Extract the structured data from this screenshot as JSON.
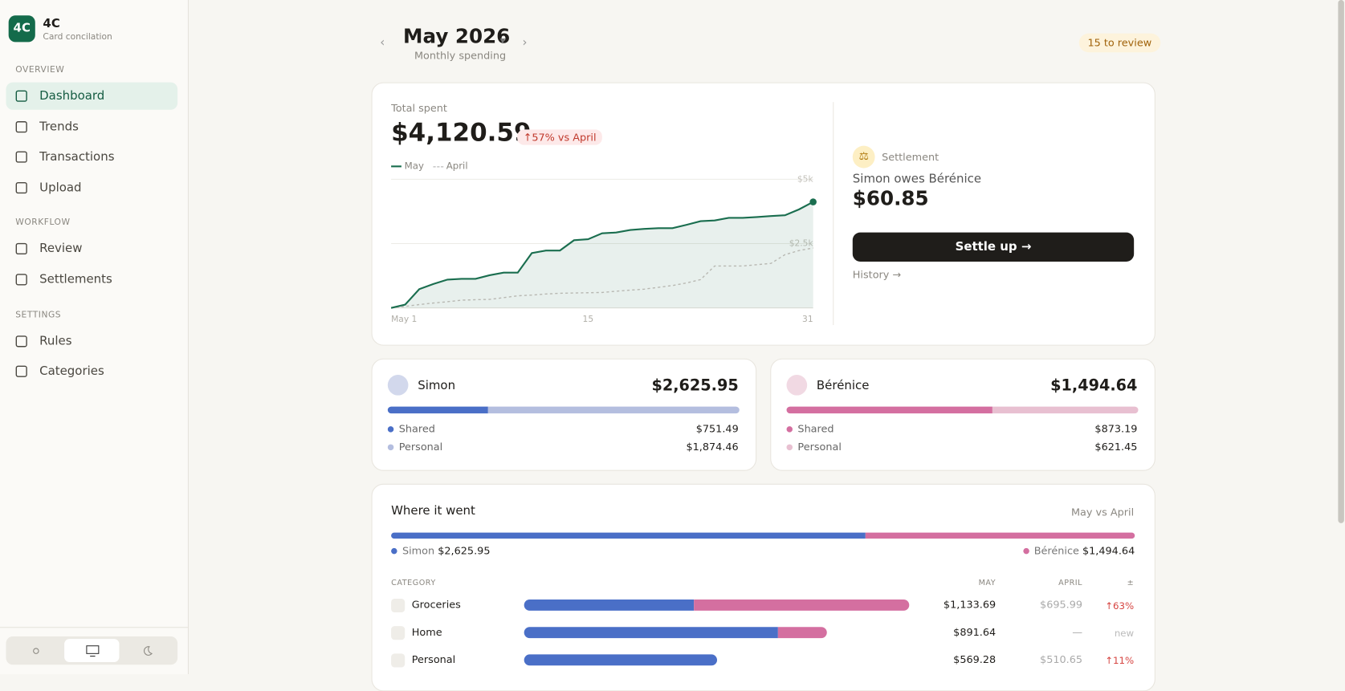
{
  "sidebar": {
    "logo": "4C",
    "name": "4C",
    "subtitle": "Card concilation",
    "sections": [
      {
        "title": "OVERVIEW",
        "items": [
          "Dashboard",
          "Trends",
          "Transactions",
          "Upload"
        ]
      },
      {
        "title": "WORKFLOW",
        "items": [
          "Review",
          "Settlements"
        ]
      },
      {
        "title": "SETTINGS",
        "items": [
          "Rules",
          "Categories"
        ]
      }
    ]
  },
  "header": {
    "month": "May 2026",
    "subtitle": "Monthly spending",
    "review_badge": "15 to review"
  },
  "total": {
    "label": "Total spent",
    "amount": "$4,120.59",
    "change": "↑57% vs April"
  },
  "chart_data": {
    "type": "line",
    "x": [
      1,
      2,
      3,
      4,
      5,
      6,
      7,
      8,
      9,
      10,
      11,
      12,
      13,
      14,
      15,
      16,
      17,
      18,
      19,
      20,
      21,
      22,
      23,
      24,
      25,
      26,
      27,
      28,
      29,
      30,
      31
    ],
    "xlim": [
      1,
      31
    ],
    "xticks": [
      {
        "value": 1,
        "label": "May 1"
      },
      15,
      31
    ],
    "ylim": [
      0,
      5000
    ],
    "yticks": [
      {
        "value": 2500,
        "label": "$2.5k"
      },
      {
        "value": 5000,
        "label": "$5k"
      }
    ],
    "grid": true,
    "series": [
      {
        "name": "May",
        "color": "#1a6e4f",
        "values": [
          0,
          130,
          730,
          930,
          1100,
          1130,
          1130,
          1270,
          1370,
          1370,
          2130,
          2230,
          2230,
          2630,
          2670,
          2900,
          2930,
          3030,
          3070,
          3100,
          3100,
          3230,
          3370,
          3400,
          3500,
          3500,
          3530,
          3570,
          3600,
          3830,
          4120
        ]
      },
      {
        "name": "April",
        "color": "#b8b8b2",
        "values": [
          0,
          60,
          130,
          190,
          240,
          300,
          320,
          330,
          400,
          470,
          500,
          540,
          570,
          580,
          590,
          600,
          650,
          690,
          730,
          800,
          870,
          970,
          1100,
          1630,
          1630,
          1630,
          1680,
          1730,
          2070,
          2230,
          2330
        ]
      }
    ]
  },
  "settlement": {
    "label": "Settlement",
    "text": "Simon owes Bérénice",
    "amount": "$60.85",
    "button": "Settle up →",
    "history": "History →"
  },
  "people": [
    {
      "name": "Simon",
      "colors": [
        "#4a6fc7",
        "#b4bedf"
      ],
      "total": {
        "value": 2625.95,
        "label": "$2,625.95"
      },
      "rows": [
        {
          "name": "Shared",
          "value": 751.49,
          "value_label": "$751.49"
        },
        {
          "name": "Personal",
          "value": 1874.46,
          "value_label": "$1,874.46"
        }
      ]
    },
    {
      "name": "Bérénice",
      "colors": [
        "#d46fa0",
        "#e8c0d1"
      ],
      "total": {
        "value": 1494.64,
        "label": "$1,494.64"
      },
      "rows": [
        {
          "name": "Shared",
          "value": 873.19,
          "value_label": "$873.19"
        },
        {
          "name": "Personal",
          "value": 621.45,
          "value_label": "$621.45"
        }
      ]
    }
  ],
  "breakdown": {
    "title": "Where it went",
    "compare": "May vs April",
    "columns": [
      "CATEGORY",
      "MAY",
      "APRIL",
      "±"
    ],
    "rows": [
      {
        "name": "Groceries",
        "may": {
          "value": 1133.69,
          "label": "$1,133.69"
        },
        "april": "$695.99",
        "change": "↑63%",
        "split": [
          500,
          633.69
        ]
      },
      {
        "name": "Home",
        "may": {
          "value": 891.64,
          "label": "$891.64"
        },
        "april": "—",
        "change": "new",
        "split": [
          748,
          143.64
        ]
      },
      {
        "name": "Personal",
        "may": {
          "value": 569.28,
          "label": "$569.28"
        },
        "april": "$510.65",
        "change": "↑11%",
        "split": [
          569.28,
          0
        ]
      }
    ]
  }
}
